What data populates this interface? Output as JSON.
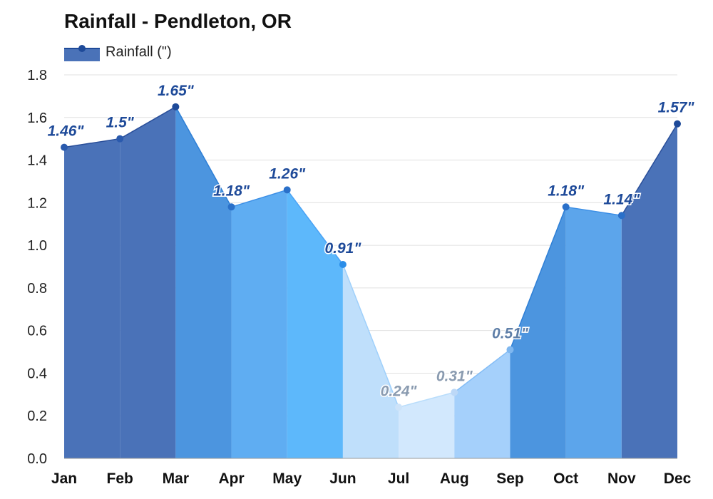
{
  "chart_data": {
    "type": "area",
    "title": "Rainfall - Pendleton, OR",
    "xlabel": "",
    "ylabel": "",
    "categories": [
      "Jan",
      "Feb",
      "Mar",
      "Apr",
      "May",
      "Jun",
      "Jul",
      "Aug",
      "Sep",
      "Oct",
      "Nov",
      "Dec"
    ],
    "series": [
      {
        "name": "Rainfall (\")",
        "values": [
          1.46,
          1.5,
          1.65,
          1.18,
          1.26,
          0.91,
          0.24,
          0.31,
          0.51,
          1.18,
          1.14,
          1.57
        ],
        "data_labels": [
          "1.46\"",
          "1.5\"",
          "1.65\"",
          "1.18\"",
          "1.26\"",
          "0.91\"",
          "0.24\"",
          "0.31\"",
          "0.51\"",
          "1.18\"",
          "1.14\"",
          "1.57\""
        ]
      }
    ],
    "ylim": [
      0,
      1.8
    ],
    "yticks": [
      0,
      0.2,
      0.4,
      0.6,
      0.8,
      1.0,
      1.2,
      1.4,
      1.6,
      1.8
    ],
    "ytick_labels": [
      "0.0",
      "0.2",
      "0.4",
      "0.6",
      "0.8",
      "1.0",
      "1.2",
      "1.4",
      "1.6",
      "1.8"
    ],
    "grid": true,
    "legend": "top-left",
    "segment_fill_colors": [
      "#4a72b8",
      "#4a72b8",
      "#4c95df",
      "#5fadf2",
      "#5db8fb",
      "#bfdffb",
      "#d2e8fd",
      "#a5d0fb",
      "#4c95df",
      "#5ca5eb",
      "#4a72b8"
    ],
    "line_colors": [
      "#2a4f9a",
      "#2a4f9a",
      "#2e7fd6",
      "#3c8fe6",
      "#4aa3f5",
      "#9fd0fb",
      "#b9ddfb",
      "#84bdf6",
      "#2e7fd6",
      "#3c8fe6",
      "#2a4f9a"
    ],
    "label_colors": [
      "#1e4a99",
      "#1e4a99",
      "#1e4a99",
      "#1e4a99",
      "#1e4a99",
      "#1e4a99",
      "#8a9bb0",
      "#8a9bb0",
      "#5f7fa8",
      "#1e4a99",
      "#1e4a99",
      "#1e4a99"
    ],
    "point_colors": [
      "#2a5aad",
      "#2a5aad",
      "#1e4a99",
      "#2a70c9",
      "#2a70c9",
      "#2a8de8",
      "#cde3f9",
      "#bcd8f7",
      "#7fb7ef",
      "#2a70c9",
      "#2a70c9",
      "#1e4a99"
    ],
    "legend_color": "#4a72b8",
    "legend_line_color": "#1e4a99",
    "gridline_color": "#e0e0e0"
  }
}
